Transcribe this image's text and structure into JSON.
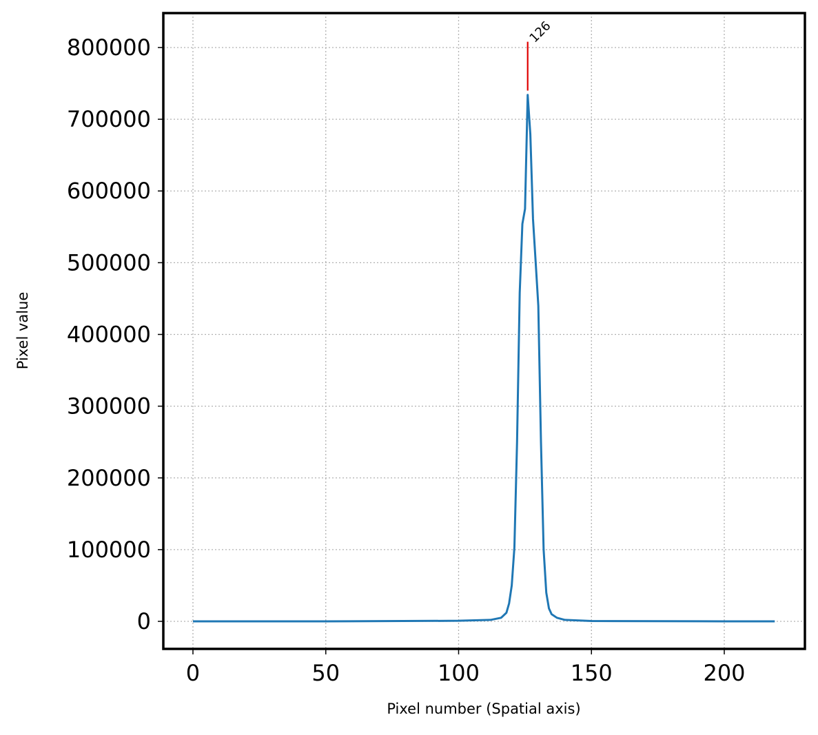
{
  "chart_data": {
    "type": "line",
    "xlabel": "Pixel number (Spatial axis)",
    "ylabel": "Pixel value",
    "x": [
      0,
      50,
      100,
      112,
      116,
      118,
      119,
      120,
      121,
      122,
      123,
      124,
      125,
      126,
      127,
      128,
      129,
      130,
      131,
      132,
      133,
      134,
      135,
      137,
      140,
      150,
      200,
      219
    ],
    "series": [
      {
        "color": "#1f77b4",
        "values": [
          0,
          0,
          800,
          2000,
          5000,
          12000,
          25000,
          50000,
          103000,
          250000,
          458000,
          554000,
          575000,
          734000,
          679000,
          561000,
          501000,
          440000,
          250000,
          100000,
          40000,
          18000,
          10000,
          5000,
          2000,
          500,
          0,
          0
        ]
      }
    ],
    "peak": {
      "x": 126,
      "ymin": 740000,
      "ymax": 808000,
      "color": "#e00000"
    },
    "xlim": [
      -11.15,
      230.35
    ],
    "ylim": [
      -38400,
      848000
    ],
    "xticks": [
      0,
      50,
      100,
      150,
      200
    ],
    "yticks": [
      0,
      100000,
      200000,
      300000,
      400000,
      500000,
      600000,
      700000,
      800000
    ],
    "grid": true
  }
}
